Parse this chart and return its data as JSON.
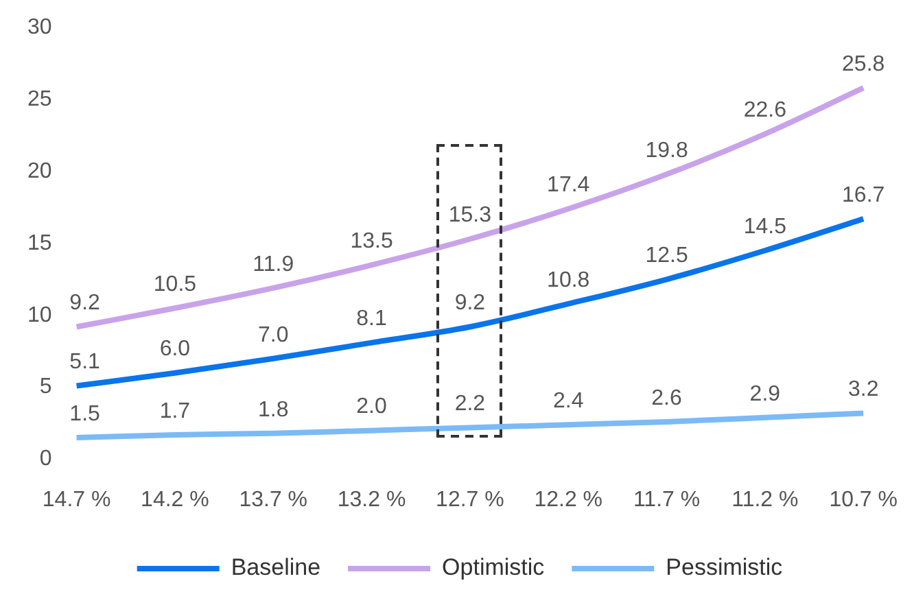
{
  "chart_data": {
    "type": "line",
    "categories": [
      "14.7 %",
      "14.2 %",
      "13.7 %",
      "13.2 %",
      "12.7 %",
      "12.2 %",
      "11.7 %",
      "11.2 %",
      "10.7 %"
    ],
    "series": [
      {
        "name": "Baseline",
        "color": "#0a74ea",
        "values": [
          5.1,
          6.0,
          7.0,
          8.1,
          9.2,
          10.8,
          12.5,
          14.5,
          16.7
        ],
        "value_labels": [
          "5.1",
          "6.0",
          "7.0",
          "8.1",
          "9.2",
          "10.8",
          "12.5",
          "14.5",
          "16.7"
        ]
      },
      {
        "name": "Optimistic",
        "color": "#c8a3ea",
        "values": [
          9.2,
          10.5,
          11.9,
          13.5,
          15.3,
          17.4,
          19.8,
          22.6,
          25.8
        ],
        "value_labels": [
          "9.2",
          "10.5",
          "11.9",
          "13.5",
          "15.3",
          "17.4",
          "19.8",
          "22.6",
          "25.8"
        ]
      },
      {
        "name": "Pessimistic",
        "color": "#7cbaf6",
        "values": [
          1.5,
          1.7,
          1.8,
          2.0,
          2.2,
          2.4,
          2.6,
          2.9,
          3.2
        ],
        "value_labels": [
          "1.5",
          "1.7",
          "1.8",
          "2.0",
          "2.2",
          "2.4",
          "2.6",
          "2.9",
          "3.2"
        ]
      }
    ],
    "ylim": [
      0,
      30
    ],
    "yticks": [
      0,
      5,
      10,
      15,
      20,
      25,
      30
    ],
    "grid": false,
    "legend": "bottom",
    "marker": "none",
    "line_style": "solid"
  }
}
